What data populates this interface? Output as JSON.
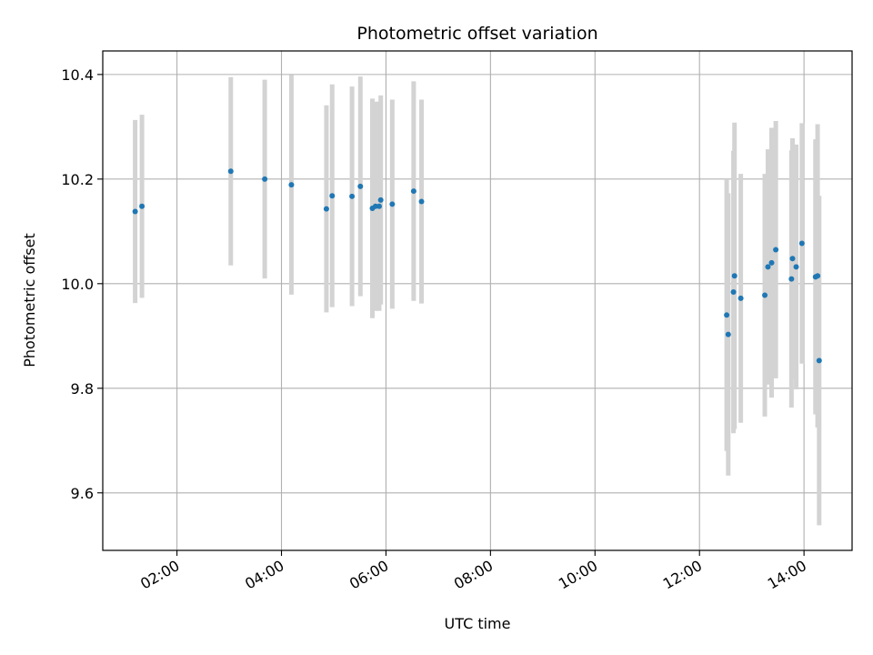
{
  "chart_data": {
    "type": "scatter",
    "title": "Photometric offset variation",
    "xlabel": "UTC time",
    "ylabel": "Photometric offset",
    "x_unit": "hours UTC",
    "xlim": [
      0.58,
      14.92
    ],
    "ylim": [
      9.49,
      10.445
    ],
    "x_ticks": [
      {
        "value": 2,
        "label": "02:00"
      },
      {
        "value": 4,
        "label": "04:00"
      },
      {
        "value": 6,
        "label": "06:00"
      },
      {
        "value": 8,
        "label": "08:00"
      },
      {
        "value": 10,
        "label": "10:00"
      },
      {
        "value": 12,
        "label": "12:00"
      },
      {
        "value": 14,
        "label": "14:00"
      }
    ],
    "y_ticks": [
      {
        "value": 9.6,
        "label": "9.6"
      },
      {
        "value": 9.8,
        "label": "9.8"
      },
      {
        "value": 10.0,
        "label": "10.0"
      },
      {
        "value": 10.2,
        "label": "10.2"
      },
      {
        "value": 10.4,
        "label": "10.4"
      }
    ],
    "grid": true,
    "colors": {
      "points": "#1f77b4",
      "errorbars": "#d3d3d3",
      "grid": "#b0b0b0"
    },
    "points": [
      {
        "x": 1.2,
        "y": 10.138,
        "err": 0.175
      },
      {
        "x": 1.33,
        "y": 10.148,
        "err": 0.175
      },
      {
        "x": 3.03,
        "y": 10.215,
        "err": 0.18
      },
      {
        "x": 3.68,
        "y": 10.2,
        "err": 0.19
      },
      {
        "x": 4.19,
        "y": 10.189,
        "err": 0.21
      },
      {
        "x": 4.86,
        "y": 10.143,
        "err": 0.198
      },
      {
        "x": 4.97,
        "y": 10.168,
        "err": 0.213
      },
      {
        "x": 5.35,
        "y": 10.167,
        "err": 0.21
      },
      {
        "x": 5.51,
        "y": 10.186,
        "err": 0.21
      },
      {
        "x": 5.74,
        "y": 10.144,
        "err": 0.21
      },
      {
        "x": 5.8,
        "y": 10.148,
        "err": 0.2
      },
      {
        "x": 5.87,
        "y": 10.148,
        "err": 0.2
      },
      {
        "x": 5.9,
        "y": 10.16,
        "err": 0.2
      },
      {
        "x": 6.12,
        "y": 10.152,
        "err": 0.2
      },
      {
        "x": 6.53,
        "y": 10.177,
        "err": 0.21
      },
      {
        "x": 6.68,
        "y": 10.157,
        "err": 0.195
      },
      {
        "x": 12.52,
        "y": 9.94,
        "err": 0.26
      },
      {
        "x": 12.55,
        "y": 9.903,
        "err": 0.27
      },
      {
        "x": 12.65,
        "y": 9.984,
        "err": 0.27
      },
      {
        "x": 12.67,
        "y": 10.015,
        "err": 0.293
      },
      {
        "x": 12.79,
        "y": 9.972,
        "err": 0.238
      },
      {
        "x": 13.25,
        "y": 9.978,
        "err": 0.232
      },
      {
        "x": 13.31,
        "y": 10.032,
        "err": 0.225
      },
      {
        "x": 13.38,
        "y": 10.04,
        "err": 0.258
      },
      {
        "x": 13.46,
        "y": 10.065,
        "err": 0.246
      },
      {
        "x": 13.76,
        "y": 10.009,
        "err": 0.246
      },
      {
        "x": 13.78,
        "y": 10.048,
        "err": 0.23
      },
      {
        "x": 13.85,
        "y": 10.032,
        "err": 0.234
      },
      {
        "x": 13.96,
        "y": 10.077,
        "err": 0.23
      },
      {
        "x": 14.22,
        "y": 10.013,
        "err": 0.263
      },
      {
        "x": 14.26,
        "y": 10.015,
        "err": 0.29
      },
      {
        "x": 14.29,
        "y": 9.853,
        "err": 0.315
      }
    ]
  }
}
